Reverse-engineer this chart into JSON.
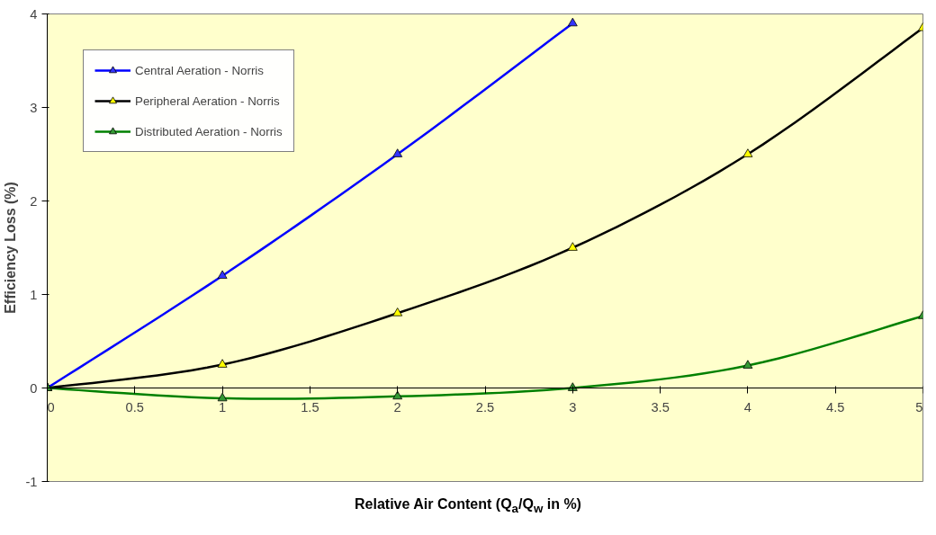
{
  "chart_data": {
    "type": "line",
    "xlabel": "Relative Air Content (Q$_{a}$/Q$_{w}$ in %)",
    "ylabel": "Efficiency Loss (%)",
    "xlim": [
      0,
      5
    ],
    "ylim": [
      -1,
      4
    ],
    "xticks": [
      0,
      0.5,
      1,
      1.5,
      2,
      2.5,
      3,
      3.5,
      4,
      4.5,
      5
    ],
    "yticks": [
      -1,
      0,
      1,
      2,
      3,
      4
    ],
    "grid": false,
    "legend": "top left",
    "marker": "triangle",
    "line_style": "solid",
    "series": [
      {
        "name": "Central Aeration - Norris",
        "color": "#0000ff",
        "x": [
          0,
          1,
          2,
          3
        ],
        "values": [
          0,
          1.2,
          2.5,
          3.9
        ]
      },
      {
        "name": "Peripheral Aeration - Norris",
        "color": "#000000",
        "x": [
          0,
          1,
          2,
          3,
          4,
          5
        ],
        "values": [
          0,
          0.25,
          0.8,
          1.5,
          2.5,
          3.85
        ]
      },
      {
        "name": "Distributed Aeration - Norris",
        "color": "#008000",
        "x": [
          0,
          1,
          2,
          3,
          4,
          5
        ],
        "values": [
          0,
          -0.11,
          -0.09,
          0,
          0.24,
          0.77
        ]
      }
    ]
  }
}
